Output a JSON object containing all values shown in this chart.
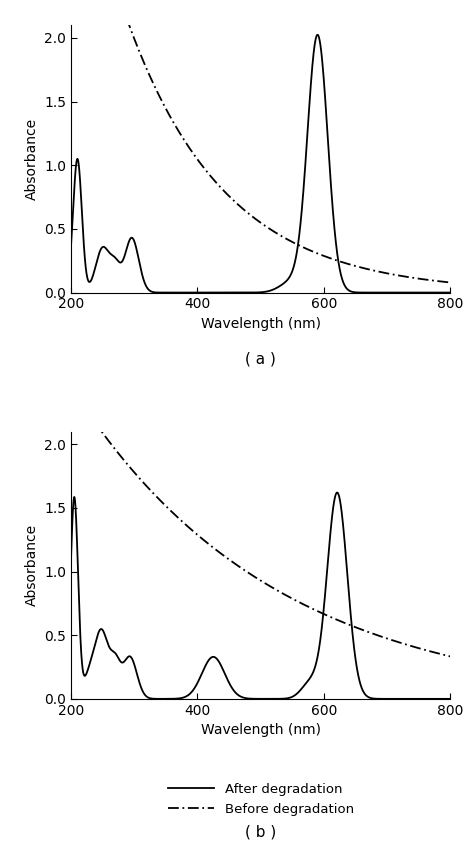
{
  "fig_width": 4.74,
  "fig_height": 8.42,
  "dpi": 100,
  "background_color": "#ffffff",
  "xlim": [
    200,
    800
  ],
  "ylim_a": [
    0,
    2.1
  ],
  "ylim_b": [
    0,
    2.1
  ],
  "yticks_a": [
    0,
    0.5,
    1.0,
    1.5,
    2.0
  ],
  "yticks_b": [
    0,
    0.5,
    1.0,
    1.5,
    2.0
  ],
  "xticks": [
    200,
    400,
    600,
    800
  ],
  "xlabel": "Wavelength (nm)",
  "ylabel": "Absorbance",
  "label_after": "After degradation",
  "label_before": "Before degradation",
  "subtitle_a": "( a )",
  "subtitle_b": "( b )"
}
